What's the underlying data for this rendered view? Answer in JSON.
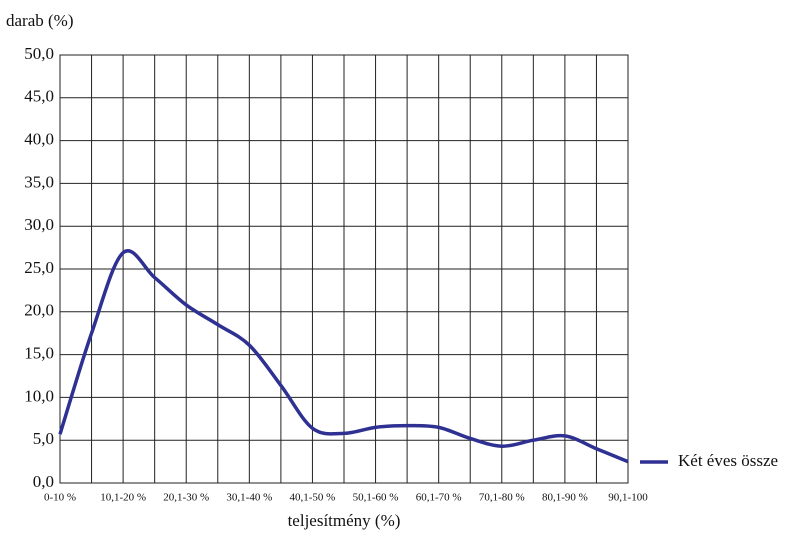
{
  "chart_data": {
    "type": "line",
    "y_label": "darab (%)",
    "x_label": "teljesítmény (%)",
    "categories": [
      "0-10 %",
      null,
      "10,1-20 %",
      null,
      "20,1-30 %",
      null,
      "30,1-40 %",
      null,
      "40,1-50 %",
      null,
      "50,1-60 %",
      null,
      "60,1-70 %",
      null,
      "70,1-80 %",
      null,
      "80,1-90 %",
      null,
      "90,1-100"
    ],
    "series": [
      {
        "name": "Két éves össze",
        "color": "#2e3192",
        "values": [
          5.7,
          17.5,
          26.9,
          24.0,
          20.8,
          18.5,
          16.1,
          11.4,
          6.4,
          5.8,
          6.5,
          6.7,
          6.5,
          5.2,
          4.3,
          5.0,
          5.5,
          4.0,
          2.5
        ]
      }
    ],
    "ylim": [
      0,
      50
    ],
    "yticks": [
      {
        "value": 0,
        "label": "0,0"
      },
      {
        "value": 5,
        "label": "5,0"
      },
      {
        "value": 10,
        "label": "10,0"
      },
      {
        "value": 15,
        "label": "15,0"
      },
      {
        "value": 20,
        "label": "20,0"
      },
      {
        "value": 25,
        "label": "25,0"
      },
      {
        "value": 30,
        "label": "30,0"
      },
      {
        "value": 35,
        "label": "35,0"
      },
      {
        "value": 40,
        "label": "40,0"
      },
      {
        "value": 45,
        "label": "45,0"
      },
      {
        "value": 50,
        "label": "50,0"
      }
    ],
    "grid": true,
    "legend": "right"
  }
}
